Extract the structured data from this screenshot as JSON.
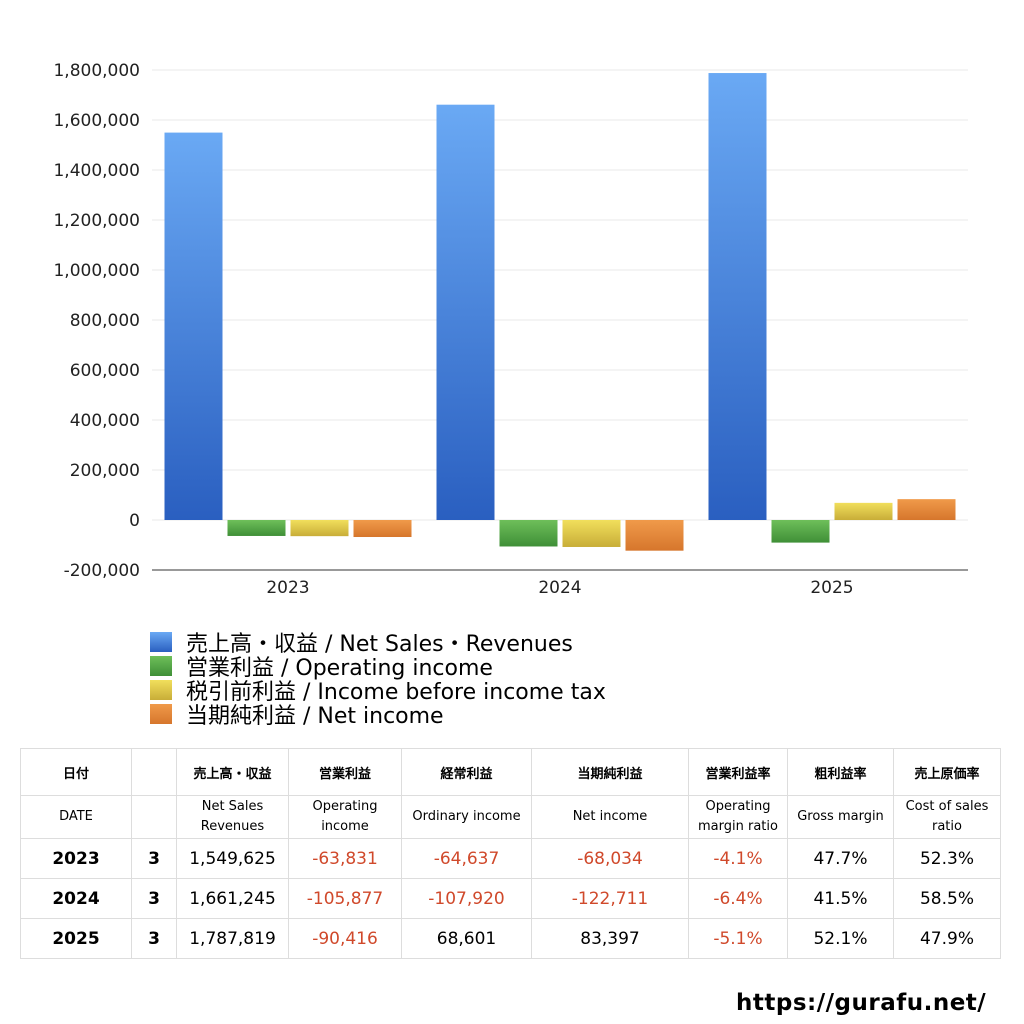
{
  "chart_data": {
    "type": "bar",
    "categories": [
      "2023",
      "2024",
      "2025"
    ],
    "series": [
      {
        "name": "売上高・収益 / Net Sales・Revenues",
        "values": [
          1549625,
          1661245,
          1787819
        ],
        "color_top": "#6aa9f4",
        "color_bottom": "#2a5fc0"
      },
      {
        "name": "営業利益 / Operating income",
        "values": [
          -63831,
          -105877,
          -90416
        ],
        "color_top": "#6ebf5a",
        "color_bottom": "#3f8f37"
      },
      {
        "name": "税引前利益 / Income before income tax",
        "values": [
          -64637,
          -107920,
          68601
        ],
        "color_top": "#f1df5c",
        "color_bottom": "#c8ad38"
      },
      {
        "name": "当期純利益 / Net income",
        "values": [
          -68034,
          -122711,
          83397
        ],
        "color_top": "#f09a4a",
        "color_bottom": "#d6762c"
      }
    ],
    "ylim": [
      -200000,
      1800000
    ],
    "yticks": [
      -200000,
      0,
      200000,
      400000,
      600000,
      800000,
      1000000,
      1200000,
      1400000,
      1600000,
      1800000
    ],
    "ytick_labels": [
      "-200,000",
      "0",
      "200,000",
      "400,000",
      "600,000",
      "800,000",
      "1,000,000",
      "1,200,000",
      "1,400,000",
      "1,600,000",
      "1,800,000"
    ],
    "grid": true,
    "legend": "bottom-left"
  },
  "table": {
    "header_jp": [
      "日付",
      "",
      "売上高・収益",
      "営業利益",
      "経常利益",
      "当期純利益",
      "営業利益率",
      "粗利益率",
      "売上原価率"
    ],
    "header_en": [
      [
        "DATE"
      ],
      [
        ""
      ],
      [
        "Net Sales",
        "Revenues"
      ],
      [
        "Operating",
        "income"
      ],
      [
        "Ordinary income"
      ],
      [
        "Net income"
      ],
      [
        "Operating",
        "margin ratio"
      ],
      [
        "Gross margin"
      ],
      [
        "Cost of sales",
        "ratio"
      ]
    ],
    "rows": [
      {
        "year": "2023",
        "month": "3",
        "cells": [
          "1,549,625",
          "-63,831",
          "-64,637",
          "-68,034",
          "-4.1%",
          "47.7%",
          "52.3%"
        ]
      },
      {
        "year": "2024",
        "month": "3",
        "cells": [
          "1,661,245",
          "-105,877",
          "-107,920",
          "-122,711",
          "-6.4%",
          "41.5%",
          "58.5%"
        ]
      },
      {
        "year": "2025",
        "month": "3",
        "cells": [
          "1,787,819",
          "-90,416",
          "68,601",
          "83,397",
          "-5.1%",
          "52.1%",
          "47.9%"
        ]
      }
    ]
  },
  "footer": {
    "url": "https://gurafu.net/"
  },
  "colors": {
    "negative_text": "#d0492b",
    "grid": "#e8e8e8",
    "axis": "#333333"
  }
}
